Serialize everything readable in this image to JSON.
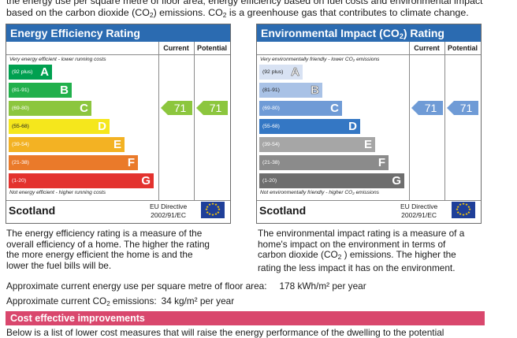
{
  "intro": {
    "line1": "the energy use per square metre of floor area, energy efficiency based on fuel costs and environmental impact",
    "line2_pre": "based on the carbon dioxide (CO",
    "line2_mid": ") emissions.  CO",
    "line2_post": " is a greenhouse gas that contributes to climate change.",
    "sub2": "2"
  },
  "eer": {
    "title": "Energy Efficiency Rating",
    "col_current": "Current",
    "col_potential": "Potential",
    "top_note": "Very energy efficient - lower running costs",
    "bottom_note": "Not energy efficient - higher running costs",
    "bands": [
      {
        "range": "(92 plus)",
        "letter": "A",
        "color": "#00a050"
      },
      {
        "range": "(81-91)",
        "letter": "B",
        "color": "#21b04c"
      },
      {
        "range": "(69-80)",
        "letter": "C",
        "color": "#8cc63e"
      },
      {
        "range": "(55-68)",
        "letter": "D",
        "color": "#f5e71c"
      },
      {
        "range": "(39-54)",
        "letter": "E",
        "color": "#f3b223"
      },
      {
        "range": "(21-38)",
        "letter": "F",
        "color": "#ea7a2a"
      },
      {
        "range": "(1-20)",
        "letter": "G",
        "color": "#e3322e"
      }
    ],
    "current": 71,
    "potential": 71,
    "arrow_color": "#8cc63e",
    "region": "Scotland",
    "directive_line1": "EU Directive",
    "directive_line2": "2002/91/EC"
  },
  "eir": {
    "title_pre": "Environmental Impact (CO",
    "title_sub": "2",
    "title_post": ") Rating",
    "col_current": "Current",
    "col_potential": "Potential",
    "top_note": "Very environmentally friendly - lower CO₂ emissions",
    "bottom_note": "Not environmentally friendly - higher CO₂ emissions",
    "bands": [
      {
        "range": "(92 plus)",
        "letter": "A",
        "color": "#d8e2f3"
      },
      {
        "range": "(81-91)",
        "letter": "B",
        "color": "#a9c2e6"
      },
      {
        "range": "(69-80)",
        "letter": "C",
        "color": "#6f9bd6"
      },
      {
        "range": "(55-68)",
        "letter": "D",
        "color": "#3477c4"
      },
      {
        "range": "(39-54)",
        "letter": "E",
        "color": "#a6a6a6"
      },
      {
        "range": "(21-38)",
        "letter": "F",
        "color": "#8b8b8b"
      },
      {
        "range": "(1-20)",
        "letter": "G",
        "color": "#6e6e6e"
      }
    ],
    "current": 71,
    "potential": 71,
    "arrow_color": "#6f9bd6",
    "region": "Scotland",
    "directive_line1": "EU Directive",
    "directive_line2": "2002/91/EC"
  },
  "desc_left": {
    "l1": "The energy efficiency rating is a measure of the",
    "l2": "overall efficiency of a home. The higher the rating",
    "l3": "the more energy efficient the home is and the",
    "l4": "lower the fuel bills will be."
  },
  "desc_right": {
    "l1": "The environmental impact rating is a measure of a",
    "l2": "home's impact on the environment in terms of",
    "l3_pre": "carbon dioxide (CO",
    "l3_sub": "2",
    "l3_post": " ) emissions. The higher the",
    "l4": "rating the less impact it has on the environment."
  },
  "energy_use": {
    "label": "Approximate current energy use per square metre of floor area:",
    "value": "178 kWh/m² per year"
  },
  "co2": {
    "label_pre": "Approximate current CO",
    "label_sub": "2",
    "label_post": " emissions:",
    "value": "34 kg/m² per year"
  },
  "improvements": {
    "title": "Cost effective improvements",
    "pre": "Below is a list of lower cost measures that will raise the energy performance of the dwelling to the potential"
  }
}
